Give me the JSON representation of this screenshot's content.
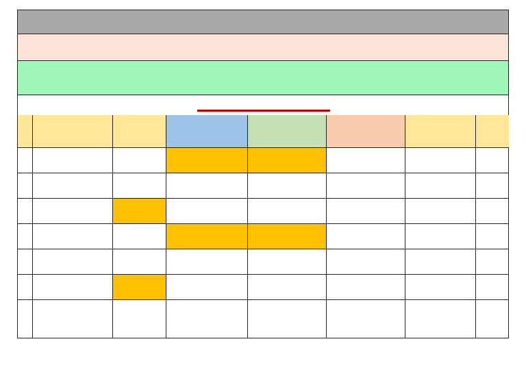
{
  "colors": {
    "title_band": "#aba8a8",
    "subtitle_band": "#fce4d6",
    "green_band": "#9ef6b8",
    "header_yellow": "#ffe699",
    "header_blue": "#9dc3e6",
    "header_green": "#c5e0b4",
    "header_orange": "#f8cbad",
    "highlight": "#ffc000",
    "underline_red": "#c00000"
  },
  "bands": {
    "title": "",
    "subtitle": "",
    "info": "",
    "caption": ""
  },
  "table": {
    "headers": [
      "",
      "",
      "",
      "",
      "",
      "",
      "",
      ""
    ],
    "rows": [
      {
        "cells": [
          "",
          "",
          "",
          "",
          "",
          "",
          "",
          ""
        ],
        "highlight": [
          false,
          false,
          false,
          true,
          true,
          false,
          false,
          false
        ]
      },
      {
        "cells": [
          "",
          "",
          "",
          "",
          "",
          "",
          "",
          ""
        ],
        "highlight": [
          false,
          false,
          false,
          false,
          false,
          false,
          false,
          false
        ]
      },
      {
        "cells": [
          "",
          "",
          "",
          "",
          "",
          "",
          "",
          ""
        ],
        "highlight": [
          false,
          false,
          true,
          false,
          false,
          false,
          false,
          false
        ]
      },
      {
        "cells": [
          "",
          "",
          "",
          "",
          "",
          "",
          "",
          ""
        ],
        "highlight": [
          false,
          false,
          false,
          true,
          true,
          false,
          false,
          false
        ]
      },
      {
        "cells": [
          "",
          "",
          "",
          "",
          "",
          "",
          "",
          ""
        ],
        "highlight": [
          false,
          false,
          false,
          false,
          false,
          false,
          false,
          false
        ]
      },
      {
        "cells": [
          "",
          "",
          "",
          "",
          "",
          "",
          "",
          ""
        ],
        "highlight": [
          false,
          false,
          true,
          false,
          false,
          false,
          false,
          false
        ]
      },
      {
        "cells": [
          "",
          "",
          "",
          "",
          "",
          "",
          "",
          ""
        ],
        "highlight": [
          false,
          false,
          false,
          false,
          false,
          false,
          false,
          false
        ]
      }
    ]
  }
}
